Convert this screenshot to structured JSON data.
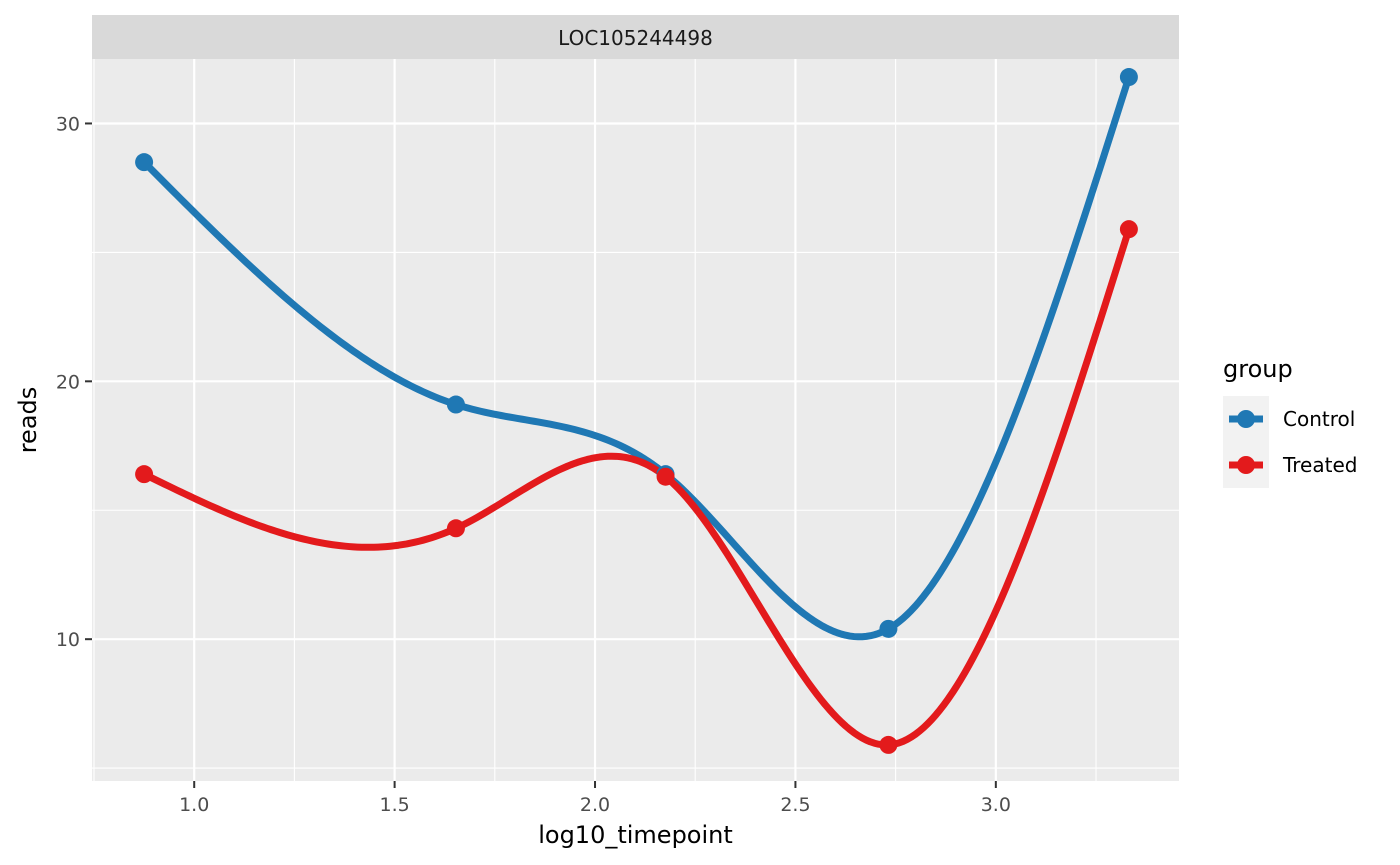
{
  "chart_data": {
    "type": "line",
    "facet_label": "LOC105244498",
    "xlabel": "log10_timepoint",
    "ylabel": "reads",
    "xlim": [
      0.745,
      3.457
    ],
    "ylim": [
      4.5,
      32.5
    ],
    "x_ticks": [
      1.0,
      1.5,
      2.0,
      2.5,
      3.0
    ],
    "x_tick_labels": [
      "1.0",
      "1.5",
      "2.0",
      "2.5",
      "3.0"
    ],
    "y_ticks": [
      10,
      20,
      30
    ],
    "y_tick_labels": [
      "10",
      "20",
      "30"
    ],
    "grid": true,
    "legend": {
      "title": "group",
      "position": "right",
      "entries": [
        "Control",
        "Treated"
      ]
    },
    "series": [
      {
        "name": "Control",
        "color": "#1f78b4",
        "x": [
          0.875,
          1.653,
          2.176,
          2.732,
          3.332
        ],
        "y": [
          28.5,
          19.1,
          16.4,
          10.4,
          31.8
        ]
      },
      {
        "name": "Treated",
        "color": "#e31a1c",
        "x": [
          0.875,
          1.653,
          2.176,
          2.732,
          3.332
        ],
        "y": [
          16.4,
          14.3,
          16.3,
          5.9,
          25.9
        ]
      }
    ]
  }
}
